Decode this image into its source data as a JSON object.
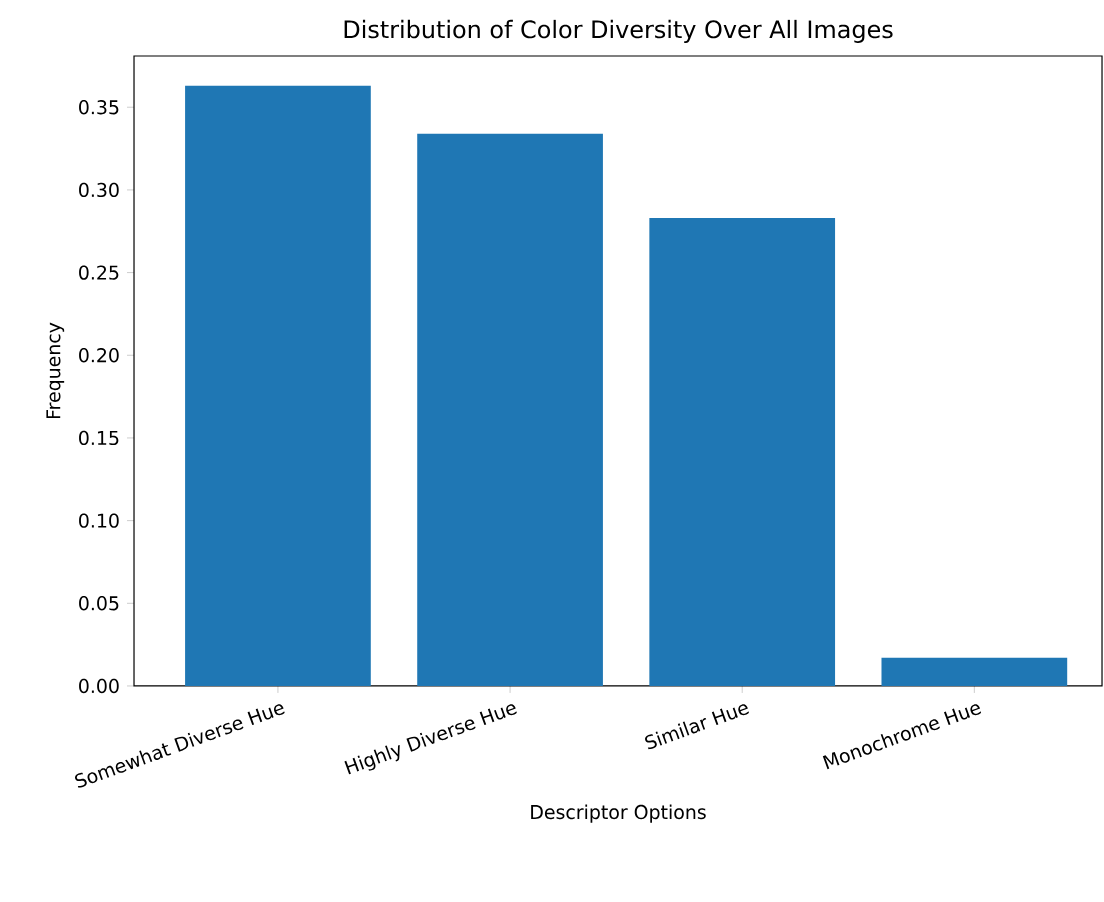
{
  "chart_data": {
    "type": "bar",
    "title": "Distribution of Color Diversity Over All Images",
    "xlabel": "Descriptor Options",
    "ylabel": "Frequency",
    "categories": [
      "Somewhat Diverse Hue",
      "Highly Diverse Hue",
      "Similar Hue",
      "Monochrome Hue"
    ],
    "values": [
      0.363,
      0.334,
      0.283,
      0.017
    ],
    "color": "#1f77b4",
    "ylim": [
      0,
      0.381
    ],
    "yticks": [
      {
        "value": 0,
        "label": "0.00"
      },
      {
        "value": 0.05,
        "label": "0.05"
      },
      {
        "value": 0.1,
        "label": "0.10"
      },
      {
        "value": 0.15,
        "label": "0.15"
      },
      {
        "value": 0.2,
        "label": "0.20"
      },
      {
        "value": 0.25,
        "label": "0.25"
      },
      {
        "value": 0.3,
        "label": "0.30"
      },
      {
        "value": 0.35,
        "label": "0.35"
      }
    ]
  }
}
